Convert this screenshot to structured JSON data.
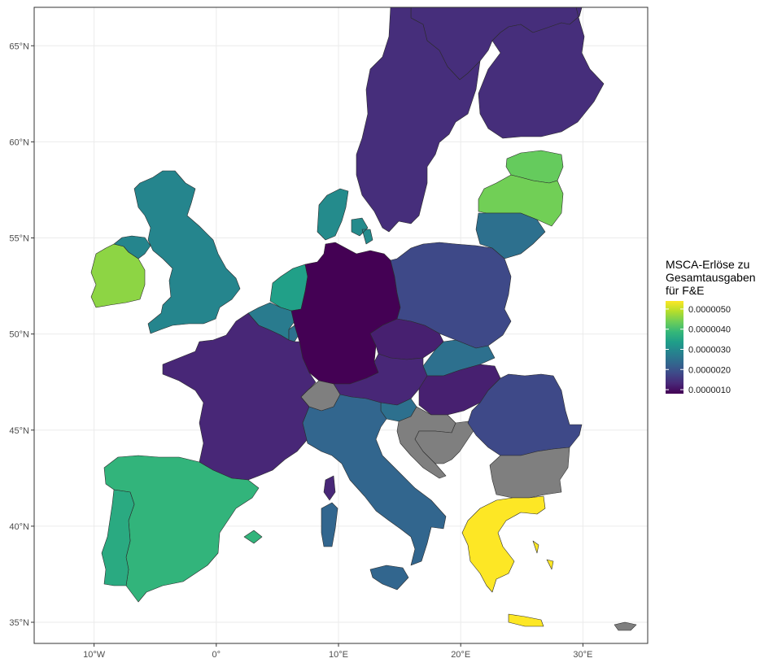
{
  "legend": {
    "title_lines": [
      "MSCA-Erlöse zu",
      "Gesamtausgaben",
      "für F&E"
    ],
    "labels": [
      "0.0000050",
      "0.0000040",
      "0.0000030",
      "0.0000020",
      "0.0000010"
    ],
    "values": [
      5e-06,
      4e-06,
      3e-06,
      2e-06,
      1e-06
    ],
    "range": [
      8e-07,
      5.4e-06
    ],
    "palette": [
      "#440154",
      "#482878",
      "#3e4a89",
      "#31688e",
      "#26828e",
      "#1f9e89",
      "#35b779",
      "#6ece58",
      "#b5de2b",
      "#fde725"
    ]
  },
  "axes": {
    "x_ticks": [
      {
        "label": "10°W",
        "lon": -10
      },
      {
        "label": "0°",
        "lon": 0
      },
      {
        "label": "10°E",
        "lon": 10
      },
      {
        "label": "20°E",
        "lon": 20
      },
      {
        "label": "30°E",
        "lon": 30
      }
    ],
    "y_ticks": [
      {
        "label": "65°N",
        "lat": 65
      },
      {
        "label": "60°N",
        "lat": 60
      },
      {
        "label": "55°N",
        "lat": 55
      },
      {
        "label": "50°N",
        "lat": 50
      },
      {
        "label": "45°N",
        "lat": 45
      },
      {
        "label": "40°N",
        "lat": 40
      },
      {
        "label": "35°N",
        "lat": 35
      }
    ],
    "xlim": [
      -14.9,
      35.3
    ],
    "ylim": [
      33.9,
      67.0
    ],
    "grid": true
  },
  "colors": {
    "no_data": "#7f7f7f",
    "grid": "#ebebeb",
    "panel_border": "#333333"
  },
  "chart_data": {
    "type": "choropleth",
    "regions": [
      {
        "id": "finland",
        "value": 1.4e-06
      },
      {
        "id": "sweden",
        "value": 1.4e-06
      },
      {
        "id": "norway",
        "value": 1.4e-06
      },
      {
        "id": "estonia",
        "value": 4.3e-06
      },
      {
        "id": "latvia",
        "value": 4.4e-06
      },
      {
        "id": "lithuania",
        "value": 2.5e-06
      },
      {
        "id": "denmark",
        "value": 3e-06
      },
      {
        "id": "ireland",
        "value": 4.6e-06
      },
      {
        "id": "united-kingdom",
        "value": 2.9e-06
      },
      {
        "id": "netherlands",
        "value": 3.4e-06
      },
      {
        "id": "belgium",
        "value": 2.7e-06
      },
      {
        "id": "luxembourg",
        "value": 2.5e-06
      },
      {
        "id": "germany",
        "value": 8e-07
      },
      {
        "id": "poland",
        "value": 1.8e-06
      },
      {
        "id": "czechia",
        "value": 1.2e-06
      },
      {
        "id": "slovakia",
        "value": 2.5e-06
      },
      {
        "id": "austria",
        "value": 1.3e-06
      },
      {
        "id": "hungary",
        "value": 1.2e-06
      },
      {
        "id": "slovenia",
        "value": 2.5e-06
      },
      {
        "id": "croatia",
        "value": null
      },
      {
        "id": "bosnia",
        "value": null
      },
      {
        "id": "romania",
        "value": 1.8e-06
      },
      {
        "id": "bulgaria",
        "value": null
      },
      {
        "id": "greece",
        "value": 5.4e-06
      },
      {
        "id": "cyprus",
        "value": null
      },
      {
        "id": "france",
        "value": 1.3e-06
      },
      {
        "id": "switzerland",
        "value": null
      },
      {
        "id": "italy",
        "value": 2.3e-06
      },
      {
        "id": "spain",
        "value": 3.8e-06
      },
      {
        "id": "portugal",
        "value": 3.6e-06
      }
    ]
  }
}
